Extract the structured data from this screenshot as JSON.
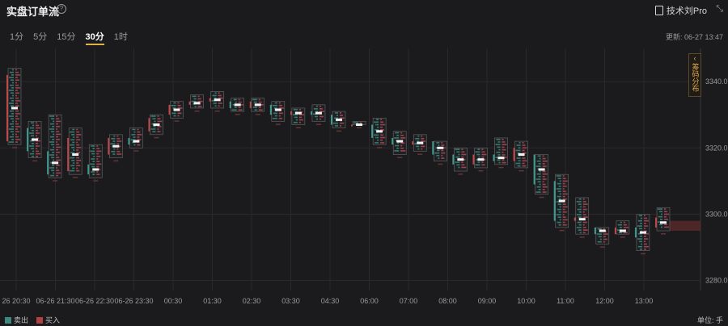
{
  "header": {
    "title": "实盘订单流",
    "help_icon": "?",
    "tool_link": "技术刘Pro",
    "collapse_icon": "⤡"
  },
  "tabs": [
    {
      "label": "1分",
      "active": false
    },
    {
      "label": "5分",
      "active": false
    },
    {
      "label": "15分",
      "active": false
    },
    {
      "label": "30分",
      "active": true
    },
    {
      "label": "1时",
      "active": false
    }
  ],
  "update": "更新: 06-27 13:47",
  "side_button": {
    "arrow": "‹",
    "label": "筹码分布"
  },
  "legend": {
    "sell": "卖出",
    "buy": "买入"
  },
  "unit": "单位: 手",
  "colors": {
    "sell": "#3e8a80",
    "buy": "#b24040",
    "accent": "#e0b04a"
  },
  "chart_data": {
    "type": "footprint",
    "y_ticks": [
      "3340.0",
      "3320.0",
      "3300.0",
      "3280.0"
    ],
    "y_values": [
      3340,
      3320,
      3300,
      3280
    ],
    "ylim": [
      3277,
      3350
    ],
    "x_ticks": [
      "26 20:30",
      "06-26 21:30",
      "06-26 22:30",
      "06-26 23:30",
      "00:30",
      "01:30",
      "02:30",
      "03:30",
      "04:30",
      "06:00",
      "07:00",
      "08:00",
      "09:00",
      "10:00",
      "11:00",
      "12:00",
      "13:00"
    ],
    "candles": [
      {
        "high": 3344,
        "low": 3321,
        "open": 3322,
        "close": 3342
      },
      {
        "high": 3328,
        "low": 3317,
        "open": 3326,
        "close": 3319
      },
      {
        "high": 3330,
        "low": 3311,
        "open": 3319,
        "close": 3312
      },
      {
        "high": 3326,
        "low": 3312,
        "open": 3313,
        "close": 3323
      },
      {
        "high": 3321,
        "low": 3311,
        "open": 3315,
        "close": 3312
      },
      {
        "high": 3324,
        "low": 3317,
        "open": 3318,
        "close": 3323
      },
      {
        "high": 3326,
        "low": 3320,
        "open": 3323,
        "close": 3321
      },
      {
        "high": 3330,
        "low": 3324,
        "open": 3325,
        "close": 3329
      },
      {
        "high": 3334,
        "low": 3329,
        "open": 3330,
        "close": 3333
      },
      {
        "high": 3336,
        "low": 3332,
        "open": 3333,
        "close": 3334
      },
      {
        "high": 3337,
        "low": 3332,
        "open": 3334,
        "close": 3335
      },
      {
        "high": 3335,
        "low": 3331,
        "open": 3334,
        "close": 3332
      },
      {
        "high": 3335,
        "low": 3331,
        "open": 3332,
        "close": 3334
      },
      {
        "high": 3334,
        "low": 3328,
        "open": 3333,
        "close": 3330
      },
      {
        "high": 3332,
        "low": 3327,
        "open": 3330,
        "close": 3331
      },
      {
        "high": 3333,
        "low": 3328,
        "open": 3331,
        "close": 3330
      },
      {
        "high": 3331,
        "low": 3326,
        "open": 3330,
        "close": 3327
      },
      {
        "high": 3328,
        "low": 3327,
        "open": 3327,
        "close": 3327
      },
      {
        "high": 3329,
        "low": 3321,
        "open": 3327,
        "close": 3323
      },
      {
        "high": 3325,
        "low": 3318,
        "open": 3323,
        "close": 3321
      },
      {
        "high": 3324,
        "low": 3319,
        "open": 3321,
        "close": 3322
      },
      {
        "high": 3322,
        "low": 3316,
        "open": 3322,
        "close": 3318
      },
      {
        "high": 3320,
        "low": 3313,
        "open": 3318,
        "close": 3315
      },
      {
        "high": 3320,
        "low": 3314,
        "open": 3315,
        "close": 3318
      },
      {
        "high": 3323,
        "low": 3315,
        "open": 3318,
        "close": 3316
      },
      {
        "high": 3322,
        "low": 3314,
        "open": 3316,
        "close": 3320
      },
      {
        "high": 3318,
        "low": 3306,
        "open": 3318,
        "close": 3309
      },
      {
        "high": 3312,
        "low": 3296,
        "open": 3310,
        "close": 3298
      },
      {
        "high": 3305,
        "low": 3294,
        "open": 3298,
        "close": 3299
      },
      {
        "high": 3296,
        "low": 3291,
        "open": 3296,
        "close": 3294
      },
      {
        "high": 3298,
        "low": 3294,
        "open": 3294,
        "close": 3296
      },
      {
        "high": 3300,
        "low": 3289,
        "open": 3296,
        "close": 3293
      },
      {
        "high": 3302,
        "low": 3295,
        "open": 3296,
        "close": 3299
      }
    ],
    "highlight_band": {
      "low": 3295,
      "high": 3298
    }
  }
}
